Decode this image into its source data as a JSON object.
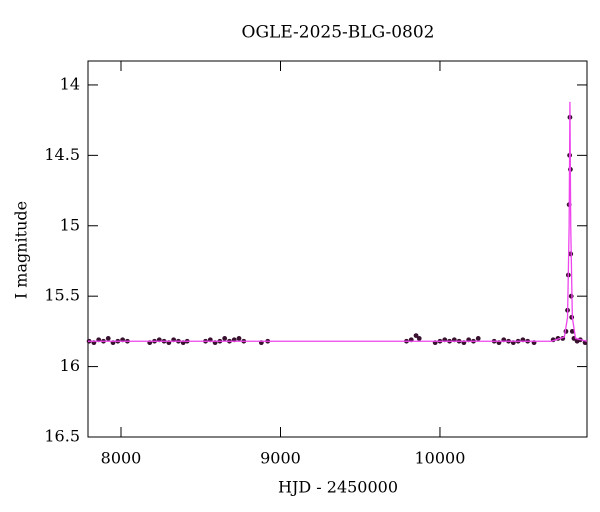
{
  "chart_data": {
    "type": "scatter",
    "title": "OGLE-2025-BLG-0802",
    "xlabel": "HJD - 2450000",
    "ylabel": "I magnitude",
    "x": [
      7800,
      7830,
      7860,
      7890,
      7920,
      7950,
      7980,
      8010,
      8040,
      8180,
      8210,
      8240,
      8270,
      8300,
      8330,
      8360,
      8390,
      8415,
      8530,
      8560,
      8590,
      8620,
      8650,
      8680,
      8710,
      8740,
      8770,
      8880,
      8920,
      9790,
      9820,
      9850,
      9870,
      9970,
      10000,
      10030,
      10060,
      10090,
      10120,
      10150,
      10180,
      10210,
      10240,
      10340,
      10370,
      10400,
      10430,
      10460,
      10490,
      10520,
      10550,
      10590,
      10710,
      10740,
      10770,
      10790,
      10800,
      10805,
      10810,
      10813,
      10815,
      10818,
      10820,
      10823,
      10826,
      10830,
      10840,
      10860,
      10880,
      10910
    ],
    "values": [
      15.82,
      15.83,
      15.81,
      15.82,
      15.8,
      15.83,
      15.82,
      15.81,
      15.82,
      15.83,
      15.82,
      15.81,
      15.82,
      15.83,
      15.81,
      15.82,
      15.83,
      15.82,
      15.82,
      15.81,
      15.83,
      15.82,
      15.8,
      15.82,
      15.81,
      15.8,
      15.82,
      15.83,
      15.82,
      15.82,
      15.81,
      15.78,
      15.8,
      15.83,
      15.82,
      15.81,
      15.82,
      15.81,
      15.82,
      15.83,
      15.81,
      15.82,
      15.8,
      15.82,
      15.83,
      15.81,
      15.82,
      15.83,
      15.82,
      15.81,
      15.82,
      15.83,
      15.81,
      15.8,
      15.8,
      15.75,
      15.6,
      15.35,
      14.85,
      14.5,
      14.23,
      14.6,
      15.2,
      15.5,
      15.65,
      15.75,
      15.8,
      15.82,
      15.81,
      15.83
    ],
    "color": "#3a1030",
    "model": {
      "type": "line",
      "x": [
        7793,
        10700,
        10780,
        10800,
        10810,
        10815,
        10820,
        10830,
        10850,
        10922
      ],
      "values": [
        15.82,
        15.82,
        15.79,
        15.65,
        15.0,
        14.12,
        15.0,
        15.65,
        15.8,
        15.82
      ],
      "color": "#ee44ee"
    },
    "xlim": [
      7793,
      10922
    ],
    "ylim": [
      16.5,
      13.83
    ],
    "xticks": [
      8000,
      9000,
      10000
    ],
    "yticks": [
      14,
      14.5,
      15,
      15.5,
      16,
      16.5
    ]
  }
}
